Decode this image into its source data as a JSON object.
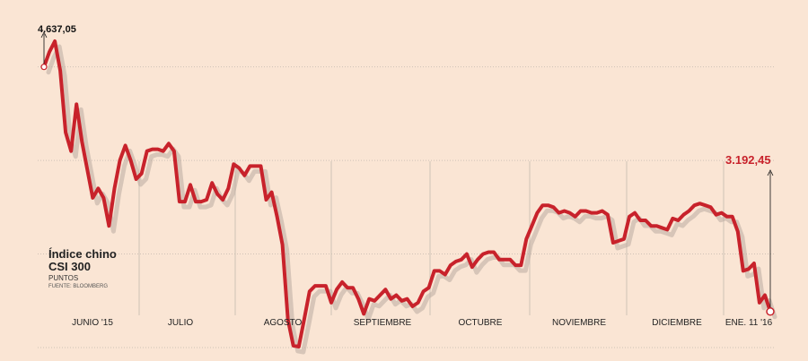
{
  "chart_data": {
    "type": "line",
    "title": "Índice chino",
    "title_line2": "CSI 300",
    "ylabel": "PUNTOS",
    "source": "FUENTE: BLOOMBERG",
    "months": [
      "JUNIO '15",
      "JULIO",
      "AGOSTO",
      "SEPTIEMBRE",
      "OCTUBRE",
      "NOVIEMBRE",
      "DICIEMBRE",
      "ENE. 11 '16"
    ],
    "max_label": "4.637,05",
    "last_label": "3.192,45",
    "ylim": [
      3000,
      4800
    ],
    "grid": "horizontal dotted",
    "colors": {
      "line": "#c8222b",
      "background": "#fae5d4",
      "grid": "#cfc2b6",
      "shadow": "#b9aca1"
    },
    "values": [
      4500,
      4580,
      4637,
      4480,
      4150,
      4050,
      4300,
      4100,
      3950,
      3800,
      3850,
      3800,
      3650,
      3850,
      4000,
      4080,
      4000,
      3900,
      3930,
      4050,
      4060,
      4060,
      4050,
      4090,
      4050,
      3780,
      3780,
      3870,
      3780,
      3780,
      3790,
      3880,
      3820,
      3790,
      3850,
      3980,
      3960,
      3920,
      3970,
      3970,
      3970,
      3790,
      3830,
      3700,
      3550,
      3150,
      3010,
      3005,
      3150,
      3300,
      3330,
      3330,
      3330,
      3240,
      3310,
      3350,
      3320,
      3320,
      3260,
      3180,
      3260,
      3250,
      3280,
      3310,
      3260,
      3280,
      3250,
      3260,
      3220,
      3240,
      3300,
      3320,
      3410,
      3410,
      3390,
      3440,
      3460,
      3470,
      3500,
      3430,
      3470,
      3500,
      3510,
      3510,
      3470,
      3470,
      3470,
      3440,
      3440,
      3580,
      3650,
      3720,
      3760,
      3760,
      3750,
      3720,
      3730,
      3720,
      3700,
      3730,
      3730,
      3720,
      3720,
      3730,
      3710,
      3560,
      3570,
      3580,
      3700,
      3720,
      3680,
      3680,
      3650,
      3650,
      3640,
      3630,
      3690,
      3680,
      3710,
      3730,
      3760,
      3770,
      3760,
      3750,
      3710,
      3720,
      3700,
      3700,
      3620,
      3410,
      3420,
      3450,
      3240,
      3280,
      3192.45
    ]
  }
}
